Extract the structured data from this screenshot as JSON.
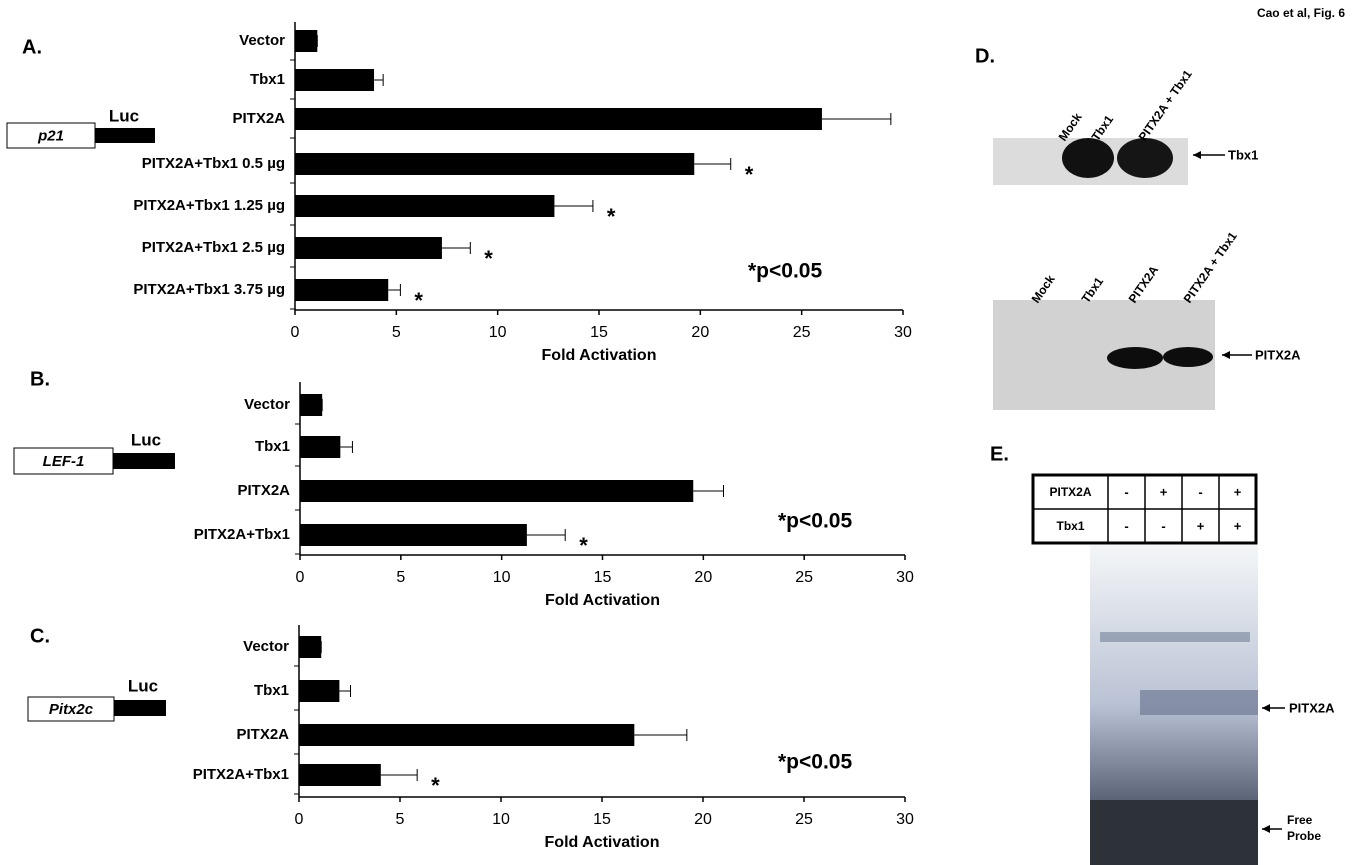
{
  "figure_label": "Cao et al, Fig. 6",
  "chart_data": [
    {
      "type": "bar",
      "orientation": "horizontal",
      "panel": "A.",
      "x_label": "Fold Activation",
      "categories": [
        "Vector",
        "Tbx1",
        "PITX2A",
        "PITX2A+Tbx1 0.5 µg",
        "PITX2A+Tbx1 1.25 µg",
        "PITX2A+Tbx1 2.5 µg",
        "PITX2A+Tbx1 3.75 µg"
      ],
      "series": [
        {
          "color": "#000000",
          "values": [
            1.1,
            3.9,
            26.0,
            19.7,
            12.8,
            7.25,
            4.6
          ],
          "errors": [
            0,
            0.45,
            3.4,
            1.8,
            1.9,
            1.4,
            0.6
          ]
        }
      ],
      "annotations": [
        null,
        null,
        null,
        "*",
        "*",
        "*",
        "*"
      ],
      "significance_note": "*p<0.05",
      "xlim": [
        0,
        30
      ],
      "xticks": [
        0,
        5,
        10,
        15,
        20,
        25,
        30
      ],
      "construct": {
        "promoter": "p21",
        "reporter": "Luc"
      }
    },
    {
      "type": "bar",
      "orientation": "horizontal",
      "panel": "B.",
      "x_label": "Fold Activation",
      "categories": [
        "Vector",
        "Tbx1",
        "PITX2A",
        "PITX2A+Tbx1"
      ],
      "series": [
        {
          "color": "#000000",
          "values": [
            1.1,
            2.0,
            19.5,
            11.25
          ],
          "errors": [
            0,
            0.6,
            1.5,
            1.9
          ]
        }
      ],
      "annotations": [
        null,
        null,
        null,
        "*"
      ],
      "significance_note": "*p<0.05",
      "xlim": [
        0,
        30
      ],
      "xticks": [
        0,
        5,
        10,
        15,
        20,
        25,
        30
      ],
      "construct": {
        "promoter": "LEF-1",
        "reporter": "Luc"
      }
    },
    {
      "type": "bar",
      "orientation": "horizontal",
      "panel": "C.",
      "x_label": "Fold Activation",
      "categories": [
        "Vector",
        "Tbx1",
        "PITX2A",
        "PITX2A+Tbx1"
      ],
      "series": [
        {
          "color": "#000000",
          "values": [
            1.1,
            2.0,
            16.6,
            4.05
          ],
          "errors": [
            0,
            0.55,
            2.6,
            1.8
          ]
        }
      ],
      "annotations": [
        null,
        null,
        null,
        "*"
      ],
      "significance_note": "*p<0.05",
      "xlim": [
        0,
        30
      ],
      "xticks": [
        0,
        5,
        10,
        15,
        20,
        25,
        30
      ],
      "construct": {
        "promoter": "Pitx2c",
        "reporter": "Luc"
      }
    }
  ],
  "panel_d": {
    "label": "D.",
    "blot1": {
      "lanes": [
        "Mock",
        "Tbx1",
        "PITX2A + Tbx1"
      ],
      "band": "Tbx1"
    },
    "blot2": {
      "lanes": [
        "Mock",
        "Tbx1",
        "PITX2A",
        "PITX2A + Tbx1"
      ],
      "band": "PITX2A"
    }
  },
  "panel_e": {
    "label": "E.",
    "rows": [
      {
        "label": "PITX2A",
        "cells": [
          "-",
          "+",
          "-",
          "+"
        ]
      },
      {
        "label": "Tbx1",
        "cells": [
          "-",
          "-",
          "+",
          "+"
        ]
      }
    ],
    "bands": [
      "PITX2A",
      "Free Probe"
    ]
  }
}
